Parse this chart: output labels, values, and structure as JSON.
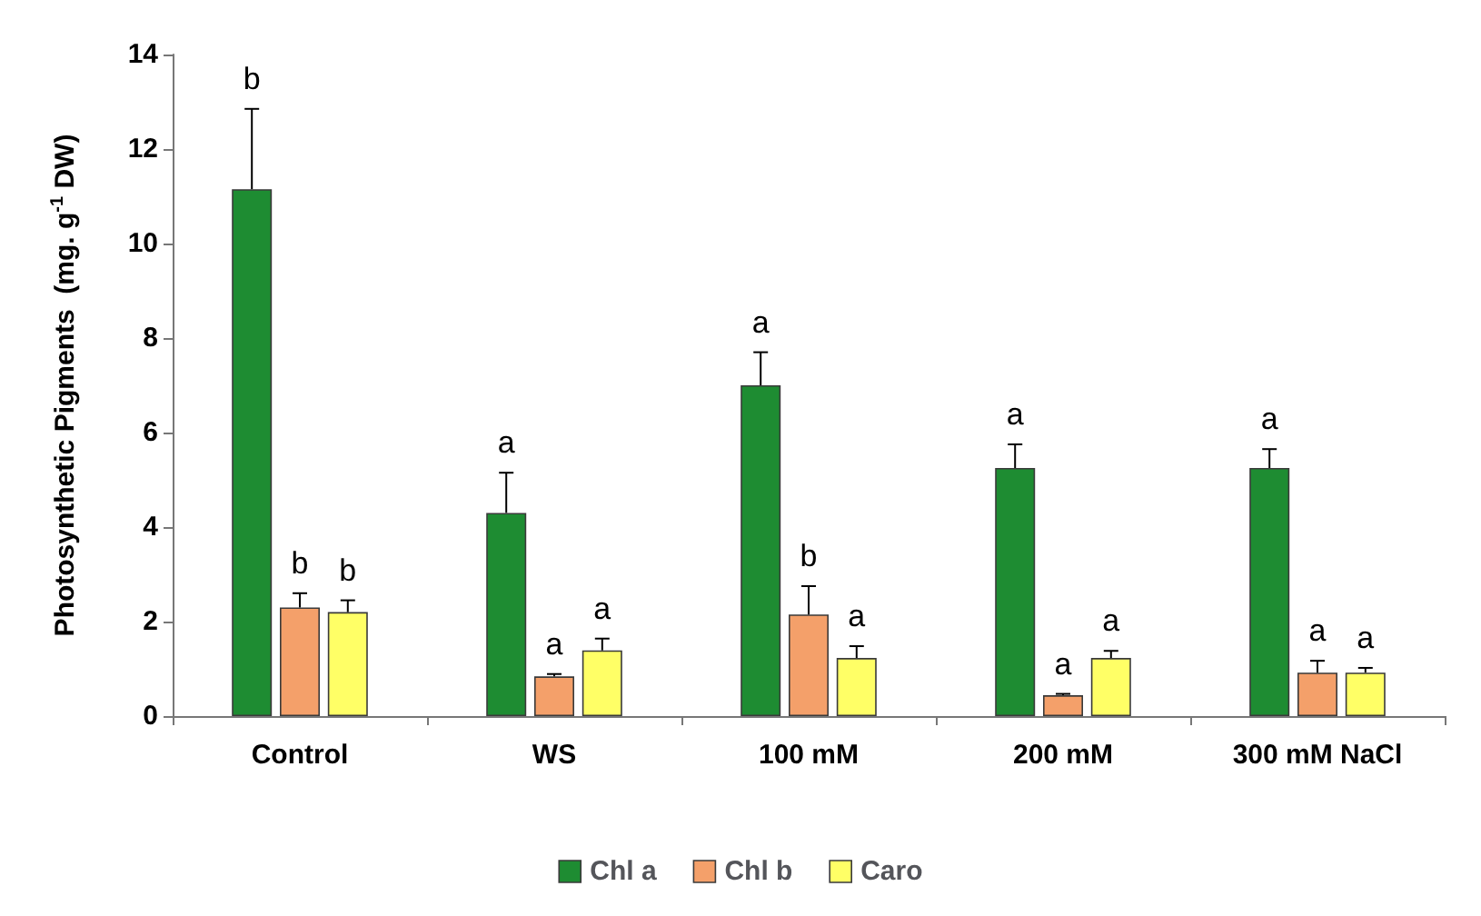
{
  "chart_data": {
    "type": "bar",
    "ylabel": "Photosynthetic Pigments  (mg. g$^{-1}$ DW)",
    "categories": [
      "Control",
      "WS",
      "100 mM",
      "200 mM",
      "300 mM NaCl"
    ],
    "series": [
      {
        "name": "Chl a",
        "color": "#1e8c32",
        "values": [
          11.15,
          4.3,
          7.0,
          5.25,
          5.25
        ],
        "errors": [
          1.7,
          0.85,
          0.7,
          0.5,
          0.4
        ],
        "value_labels": [
          "b",
          "a",
          "a",
          "a",
          "a"
        ]
      },
      {
        "name": "Chl b",
        "color": "#f4a06a",
        "values": [
          2.3,
          0.84,
          2.15,
          0.44,
          0.92
        ],
        "errors": [
          0.3,
          0.05,
          0.6,
          0.03,
          0.25
        ],
        "value_labels": [
          "b",
          "a",
          "b",
          "a",
          "a"
        ]
      },
      {
        "name": "Caro",
        "color": "#ffff66",
        "values": [
          2.2,
          1.39,
          1.23,
          1.23,
          0.92
        ],
        "errors": [
          0.25,
          0.25,
          0.25,
          0.15,
          0.1
        ],
        "value_labels": [
          "b",
          "a",
          "a",
          "a",
          "a"
        ]
      }
    ],
    "ylim": [
      0,
      14
    ],
    "yticks": [
      0,
      2,
      4,
      6,
      8,
      10,
      12,
      14
    ],
    "grid": false,
    "legend": "bottom"
  }
}
